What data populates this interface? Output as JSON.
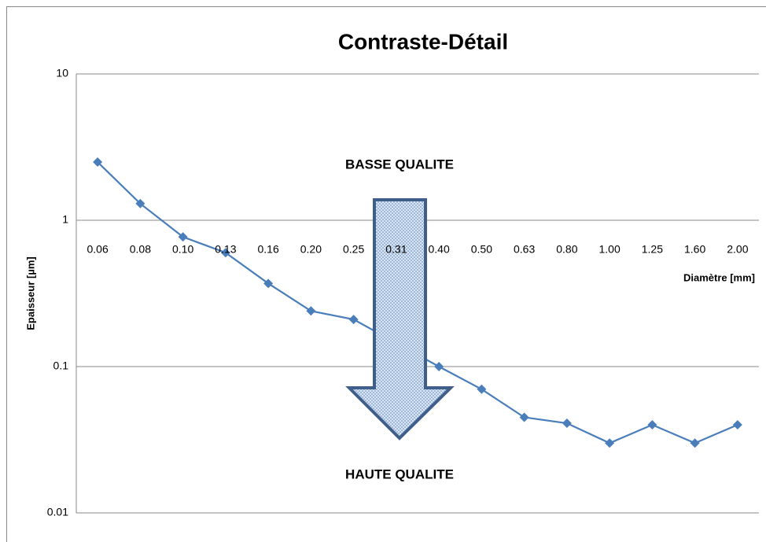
{
  "chart_data": {
    "type": "line",
    "title": "Contraste-Détail",
    "x_label": "Diamètre [mm]",
    "y_label": "Epaisseur [µm]",
    "categories": [
      "0.06",
      "0.08",
      "0.10",
      "0.13",
      "0.16",
      "0.20",
      "0.25",
      "0.31",
      "0.40",
      "0.50",
      "0.63",
      "0.80",
      "1.00",
      "1.25",
      "1.60",
      "2.00"
    ],
    "series": [
      {
        "name": "Epaisseur",
        "color": "#4a7ebb",
        "values": [
          2.5,
          1.3,
          0.77,
          0.6,
          0.37,
          0.24,
          0.21,
          0.145,
          0.1,
          0.07,
          0.045,
          0.041,
          0.03,
          0.04,
          0.03,
          0.04
        ]
      }
    ],
    "y_scale": "log",
    "ylim": [
      0.01,
      10
    ],
    "yticks": [
      0.01,
      0.1,
      1,
      10
    ],
    "grid": true,
    "x_axis_at": 1,
    "annotations": [
      "BASSE QUALITE",
      "HAUTE QUALITE"
    ]
  }
}
